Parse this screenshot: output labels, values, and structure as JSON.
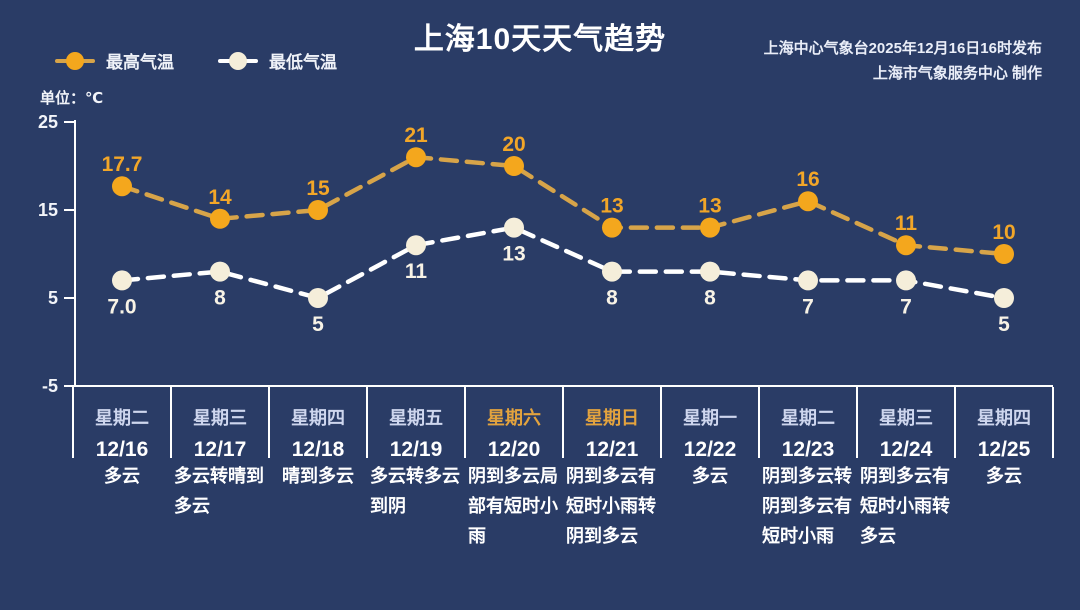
{
  "header": {
    "title": "上海10天天气趋势",
    "issued": "上海中心气象台2025年12月16日16时发布",
    "producer": "上海市气象服务中心  制作"
  },
  "legend": {
    "high_label": "最高气温",
    "low_label": "最低气温"
  },
  "unit_label": "单位：℃",
  "colors": {
    "background": "#2A3C66",
    "high_marker": "#F4A71D",
    "high_line": "#D7A449",
    "high_value_label": "#F2A628",
    "low_marker": "#F5EEDA",
    "low_line": "#FFFFFF",
    "low_value_label": "#F8F3E6",
    "axis": "#FFFFFF",
    "weekday": "#CED6EE",
    "weekend": "#E3A33E",
    "date": "#FFFFFF",
    "weather": "#FFFFFF"
  },
  "chart_data": {
    "type": "line",
    "title": "上海10天天气趋势",
    "unit": "℃",
    "ylim": [
      -5,
      25
    ],
    "yticks": [
      25,
      15,
      5,
      -5
    ],
    "ytick_labels": [
      "25",
      "15",
      "5",
      "-5"
    ],
    "grid": false,
    "legend_position": "top-left",
    "categories": [
      "12/16",
      "12/17",
      "12/18",
      "12/19",
      "12/20",
      "12/21",
      "12/22",
      "12/23",
      "12/24",
      "12/25"
    ],
    "series": [
      {
        "name": "最高气温",
        "color": "#F4A71D",
        "values": [
          17.7,
          14,
          15,
          21,
          20,
          13,
          13,
          16,
          11,
          10
        ],
        "labels": [
          "17.7",
          "14",
          "15",
          "21",
          "20",
          "13",
          "13",
          "16",
          "11",
          "10"
        ]
      },
      {
        "name": "最低气温",
        "color": "#F5EEDA",
        "values": [
          7.0,
          8,
          5,
          11,
          13,
          8,
          8,
          7,
          7,
          5
        ],
        "labels": [
          "7.0",
          "8",
          "5",
          "11",
          "13",
          "8",
          "8",
          "7",
          "7",
          "5"
        ]
      }
    ],
    "days": [
      {
        "weekday": "星期二",
        "date": "12/16",
        "weather": "多云",
        "weekend": false
      },
      {
        "weekday": "星期三",
        "date": "12/17",
        "weather": "多云转晴到多云",
        "weekend": false
      },
      {
        "weekday": "星期四",
        "date": "12/18",
        "weather": "晴到多云",
        "weekend": false
      },
      {
        "weekday": "星期五",
        "date": "12/19",
        "weather": "多云转多云到阴",
        "weekend": false
      },
      {
        "weekday": "星期六",
        "date": "12/20",
        "weather": "阴到多云局部有短时小雨",
        "weekend": true
      },
      {
        "weekday": "星期日",
        "date": "12/21",
        "weather": "阴到多云有短时小雨转阴到多云",
        "weekend": true
      },
      {
        "weekday": "星期一",
        "date": "12/22",
        "weather": "多云",
        "weekend": false
      },
      {
        "weekday": "星期二",
        "date": "12/23",
        "weather": "阴到多云转阴到多云有短时小雨",
        "weekend": false
      },
      {
        "weekday": "星期三",
        "date": "12/24",
        "weather": "阴到多云有短时小雨转多云",
        "weekend": false
      },
      {
        "weekday": "星期四",
        "date": "12/25",
        "weather": "多云",
        "weekend": false
      }
    ]
  }
}
